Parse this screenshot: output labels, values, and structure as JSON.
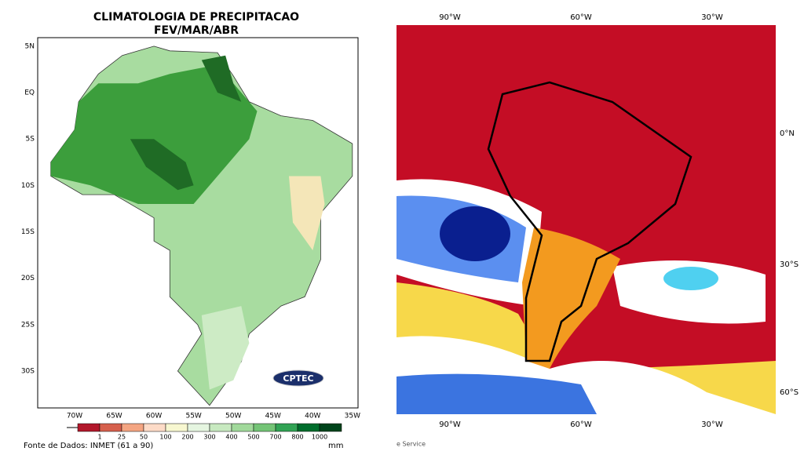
{
  "left_map": {
    "title": "CLIMATOLOGIA DE PRECIPITACAO",
    "subtitle": "FEV/MAR/ABR",
    "lat_labels": [
      "5N",
      "EQ",
      "5S",
      "10S",
      "15S",
      "20S",
      "25S",
      "30S"
    ],
    "lon_labels": [
      "70W",
      "65W",
      "60W",
      "55W",
      "50W",
      "45W",
      "40W",
      "35W"
    ],
    "colorbar": {
      "labels": [
        "1",
        "25",
        "50",
        "100",
        "200",
        "300",
        "400",
        "500",
        "700",
        "800",
        "1000"
      ],
      "unit": "mm"
    },
    "source": "Fonte de Dados: INMET (61 a 90)",
    "logo": "CPTEC"
  },
  "right_map": {
    "top_lon_labels": [
      "90°W",
      "60°W",
      "30°W"
    ],
    "bottom_lon_labels": [
      "90°W",
      "60°W",
      "30°W"
    ],
    "lat_labels": [
      "0°N",
      "30°S",
      "60°S"
    ],
    "credit": "e Service"
  }
}
